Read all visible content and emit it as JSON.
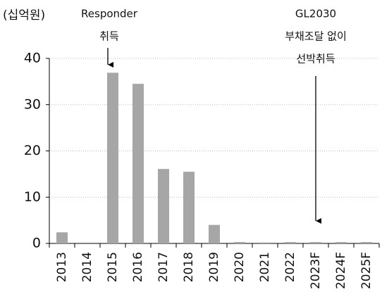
{
  "chart_data": {
    "type": "bar",
    "unit_label": "(십억원)",
    "categories": [
      "2013",
      "2014",
      "2015",
      "2016",
      "2017",
      "2018",
      "2019",
      "2020",
      "2021",
      "2022",
      "2023F",
      "2024F",
      "2025F"
    ],
    "values": [
      2.4,
      0,
      36.9,
      34.5,
      16.1,
      15.5,
      4.0,
      0.3,
      0.2,
      0.3,
      0.3,
      0.3,
      0.3
    ],
    "color": "#a6a6a6",
    "ylim": [
      0,
      40
    ],
    "yticks": [
      0,
      10,
      20,
      30,
      40
    ],
    "grid": true,
    "annotations": [
      {
        "lines": [
          "Responder",
          "취득"
        ]
      },
      {
        "lines": [
          "GL2030",
          "부채조달 없이",
          "선박취득"
        ]
      }
    ]
  }
}
